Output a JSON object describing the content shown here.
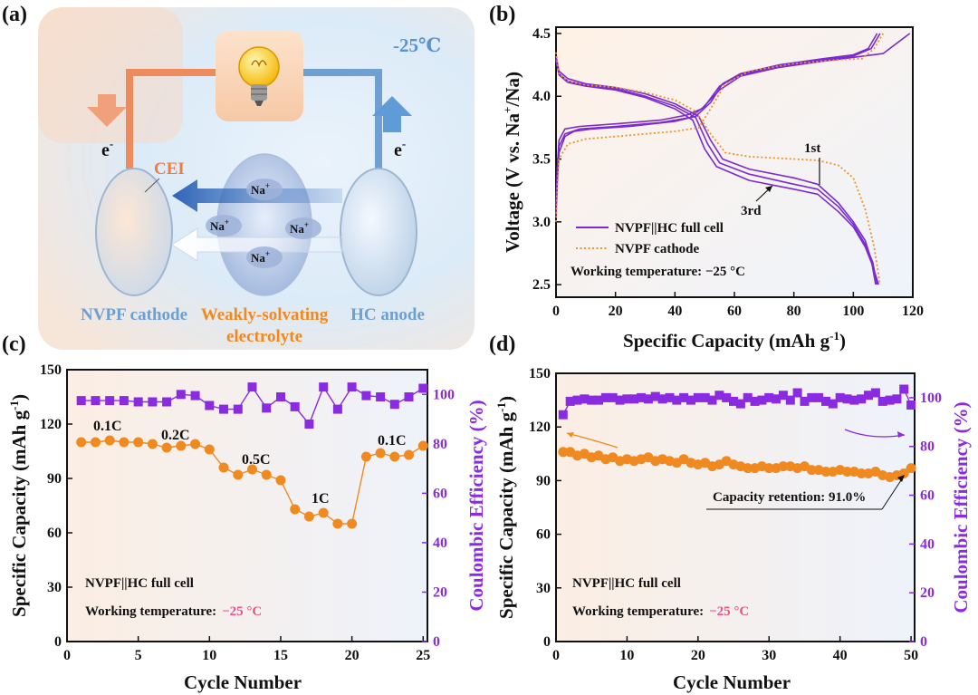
{
  "panel_labels": [
    "(a)",
    "(b)",
    "(c)",
    "(d)"
  ],
  "schematic": {
    "temperature": "-25℃",
    "electron": "e",
    "electron_sup": "-",
    "cei": "CEI",
    "na_ion": "Na",
    "na_sup": "+",
    "cathode_label": "NVPF cathode",
    "electrolyte_label_1": "Weakly-solvating",
    "electrolyte_label_2": "electrolyte",
    "anode_label": "HC anode",
    "colors": {
      "cathode": "#e8804a",
      "anode": "#5a90c8",
      "electrolyte": "#f08a20"
    }
  },
  "chart_data": [
    {
      "id": "b",
      "type": "line",
      "xlabel": "Specific Capacity (mAh g-1)",
      "ylabel": "Voltage (V vs. Na+/Na)",
      "xlim": [
        0,
        120
      ],
      "ylim": [
        2.4,
        4.55
      ],
      "xticks": [
        0,
        20,
        40,
        60,
        80,
        100,
        120
      ],
      "yticks": [
        2.5,
        3.0,
        3.5,
        4.0,
        4.5
      ],
      "legend": [
        "NVPF||HC full cell",
        "NVPF cathode"
      ],
      "annotations": [
        "1st",
        "3rd"
      ],
      "note": "Working temperature: −25 °C",
      "series": [
        {
          "name": "NVPF||HC full cell charge 1st",
          "style": "solid",
          "color": "#7a2ad0",
          "points": [
            [
              0,
              3.05
            ],
            [
              0.5,
              3.35
            ],
            [
              1,
              3.55
            ],
            [
              3,
              3.68
            ],
            [
              6,
              3.72
            ],
            [
              12,
              3.74
            ],
            [
              25,
              3.76
            ],
            [
              40,
              3.8
            ],
            [
              47,
              3.84
            ],
            [
              52,
              3.95
            ],
            [
              56,
              4.1
            ],
            [
              62,
              4.18
            ],
            [
              75,
              4.25
            ],
            [
              90,
              4.3
            ],
            [
              100,
              4.33
            ],
            [
              105,
              4.38
            ],
            [
              108,
              4.5
            ]
          ]
        },
        {
          "name": "NVPF||HC full cell charge 2nd",
          "style": "solid",
          "color": "#7a2ad0",
          "points": [
            [
              0,
              3.1
            ],
            [
              0.5,
              3.4
            ],
            [
              1,
              3.6
            ],
            [
              3,
              3.7
            ],
            [
              8,
              3.74
            ],
            [
              20,
              3.76
            ],
            [
              35,
              3.79
            ],
            [
              45,
              3.83
            ],
            [
              50,
              3.92
            ],
            [
              55,
              4.08
            ],
            [
              62,
              4.17
            ],
            [
              75,
              4.24
            ],
            [
              90,
              4.29
            ],
            [
              100,
              4.32
            ],
            [
              106,
              4.38
            ],
            [
              109,
              4.5
            ]
          ]
        },
        {
          "name": "NVPF||HC full cell charge 3rd",
          "style": "solid",
          "color": "#7a2ad0",
          "points": [
            [
              0,
              3.15
            ],
            [
              0.5,
              3.45
            ],
            [
              1,
              3.65
            ],
            [
              3,
              3.74
            ],
            [
              8,
              3.76
            ],
            [
              20,
              3.78
            ],
            [
              35,
              3.81
            ],
            [
              44,
              3.85
            ],
            [
              49,
              3.9
            ],
            [
              55,
              4.05
            ],
            [
              62,
              4.16
            ],
            [
              75,
              4.23
            ],
            [
              90,
              4.28
            ],
            [
              100,
              4.31
            ],
            [
              110,
              4.34
            ],
            [
              119,
              4.5
            ]
          ]
        },
        {
          "name": "NVPF||HC full cell discharge 1st",
          "style": "solid",
          "color": "#7a2ad0",
          "points": [
            [
              0,
              4.32
            ],
            [
              1,
              4.2
            ],
            [
              4,
              4.14
            ],
            [
              10,
              4.1
            ],
            [
              20,
              4.07
            ],
            [
              30,
              4.02
            ],
            [
              40,
              3.94
            ],
            [
              48,
              3.84
            ],
            [
              52,
              3.65
            ],
            [
              56,
              3.5
            ],
            [
              65,
              3.42
            ],
            [
              80,
              3.35
            ],
            [
              88,
              3.3
            ],
            [
              95,
              3.15
            ],
            [
              100,
              3.0
            ],
            [
              104,
              2.85
            ],
            [
              106,
              2.7
            ],
            [
              107.5,
              2.5
            ]
          ]
        },
        {
          "name": "NVPF||HC full cell discharge 2nd",
          "style": "solid",
          "color": "#7a2ad0",
          "points": [
            [
              0,
              4.3
            ],
            [
              1,
              4.18
            ],
            [
              4,
              4.12
            ],
            [
              10,
              4.09
            ],
            [
              20,
              4.06
            ],
            [
              30,
              4.0
            ],
            [
              40,
              3.92
            ],
            [
              47,
              3.83
            ],
            [
              51,
              3.62
            ],
            [
              55,
              3.47
            ],
            [
              65,
              3.38
            ],
            [
              80,
              3.3
            ],
            [
              88,
              3.26
            ],
            [
              95,
              3.12
            ],
            [
              100,
              2.98
            ],
            [
              104,
              2.82
            ],
            [
              106.5,
              2.68
            ],
            [
              108,
              2.5
            ]
          ]
        },
        {
          "name": "NVPF||HC full cell discharge 3rd",
          "style": "solid",
          "color": "#7a2ad0",
          "points": [
            [
              0,
              4.29
            ],
            [
              1,
              4.17
            ],
            [
              4,
              4.11
            ],
            [
              10,
              4.08
            ],
            [
              20,
              4.05
            ],
            [
              30,
              3.99
            ],
            [
              40,
              3.9
            ],
            [
              46,
              3.81
            ],
            [
              50,
              3.58
            ],
            [
              54,
              3.44
            ],
            [
              65,
              3.33
            ],
            [
              80,
              3.26
            ],
            [
              88,
              3.22
            ],
            [
              95,
              3.08
            ],
            [
              100,
              2.96
            ],
            [
              104,
              2.8
            ],
            [
              106.5,
              2.65
            ],
            [
              108.5,
              2.5
            ]
          ]
        },
        {
          "name": "NVPF cathode charge",
          "style": "dotted",
          "color": "#f0922a",
          "points": [
            [
              0,
              3.0
            ],
            [
              0.5,
              3.3
            ],
            [
              1,
              3.5
            ],
            [
              4,
              3.62
            ],
            [
              10,
              3.66
            ],
            [
              20,
              3.68
            ],
            [
              30,
              3.7
            ],
            [
              40,
              3.72
            ],
            [
              48,
              3.75
            ],
            [
              52,
              3.9
            ],
            [
              57,
              4.1
            ],
            [
              65,
              4.2
            ],
            [
              80,
              4.26
            ],
            [
              95,
              4.29
            ],
            [
              103,
              4.3
            ],
            [
              107,
              4.38
            ],
            [
              110,
              4.5
            ]
          ]
        },
        {
          "name": "NVPF cathode discharge",
          "style": "dotted",
          "color": "#f0922a",
          "points": [
            [
              0,
              4.35
            ],
            [
              1,
              4.18
            ],
            [
              4,
              4.12
            ],
            [
              10,
              4.09
            ],
            [
              20,
              4.07
            ],
            [
              30,
              4.03
            ],
            [
              40,
              3.97
            ],
            [
              47,
              3.88
            ],
            [
              52,
              3.7
            ],
            [
              57,
              3.55
            ],
            [
              65,
              3.52
            ],
            [
              80,
              3.5
            ],
            [
              88,
              3.49
            ],
            [
              95,
              3.45
            ],
            [
              100,
              3.35
            ],
            [
              104,
              3.1
            ],
            [
              107,
              2.8
            ],
            [
              109,
              2.5
            ]
          ]
        }
      ]
    },
    {
      "id": "c",
      "type": "scatter",
      "xlabel": "Cycle Number",
      "ylabel": "Specific Capacity (mAh g-1)",
      "y2label": "Coulombic Efficiency (%)",
      "xlim": [
        0,
        25.3
      ],
      "ylim": [
        0,
        150
      ],
      "y2lim": [
        0,
        110
      ],
      "xticks": [
        0,
        5,
        10,
        15,
        20,
        25
      ],
      "yticks": [
        0,
        30,
        60,
        90,
        120,
        150
      ],
      "y2ticks": [
        0,
        20,
        40,
        60,
        80,
        100
      ],
      "rate_labels": [
        "0.1C",
        "0.2C",
        "0.5C",
        "1C",
        "0.1C"
      ],
      "note_cell": "NVPF||HC full cell",
      "note_temp_prefix": "Working temperature:",
      "note_temp_value": "−25 °C",
      "series": [
        {
          "name": "Specific Capacity",
          "axis": "left",
          "color": "#f08a20",
          "x": [
            1,
            2,
            3,
            4,
            5,
            6,
            7,
            8,
            9,
            10,
            11,
            12,
            13,
            14,
            15,
            16,
            17,
            18,
            19,
            20,
            21,
            22,
            23,
            24,
            25
          ],
          "values": [
            110,
            110,
            111,
            110,
            110,
            109,
            107,
            108,
            109,
            106,
            96,
            92,
            95,
            92,
            89,
            73,
            69,
            71,
            65,
            65,
            102,
            104,
            102,
            103,
            108
          ]
        },
        {
          "name": "Coulombic Efficiency",
          "axis": "right",
          "color": "#8a2be2",
          "x": [
            1,
            2,
            3,
            4,
            5,
            6,
            7,
            8,
            9,
            10,
            11,
            12,
            13,
            14,
            15,
            16,
            17,
            18,
            19,
            20,
            21,
            22,
            23,
            24,
            25
          ],
          "values": [
            97.5,
            97.5,
            97.5,
            97.5,
            97,
            97,
            97,
            100,
            99.5,
            95.5,
            94,
            94,
            103,
            94.5,
            99,
            95,
            88,
            103,
            94,
            103,
            99.5,
            99,
            96,
            99,
            102.5
          ]
        }
      ]
    },
    {
      "id": "d",
      "type": "scatter",
      "xlabel": "Cycle Number",
      "ylabel": "Specific Capacity (mAh g-1)",
      "y2label": "Coulombic Efficiency (%)",
      "xlim": [
        0,
        50.5
      ],
      "ylim": [
        0,
        150
      ],
      "y2lim": [
        0,
        110
      ],
      "xticks": [
        0,
        10,
        20,
        30,
        40,
        50
      ],
      "yticks": [
        0,
        30,
        60,
        90,
        120,
        150
      ],
      "y2ticks": [
        0,
        20,
        40,
        60,
        80,
        100
      ],
      "note_retention": "Capacity retention: 91.0%",
      "note_cell": "NVPF||HC full cell",
      "note_temp_prefix": "Working temperature:",
      "note_temp_value": "−25 °C",
      "series": [
        {
          "name": "Specific Capacity",
          "axis": "left",
          "color": "#f08a20",
          "x": [
            1,
            2,
            3,
            4,
            5,
            6,
            7,
            8,
            9,
            10,
            11,
            12,
            13,
            14,
            15,
            16,
            17,
            18,
            19,
            20,
            21,
            22,
            23,
            24,
            25,
            26,
            27,
            28,
            29,
            30,
            31,
            32,
            33,
            34,
            35,
            36,
            37,
            38,
            39,
            40,
            41,
            42,
            43,
            44,
            45,
            46,
            47,
            48,
            49,
            50
          ],
          "values": [
            106,
            106,
            104,
            105,
            103,
            104,
            102,
            103,
            101,
            102,
            101,
            102,
            103,
            101,
            102,
            101,
            100,
            102,
            100,
            99,
            100,
            98,
            99,
            101,
            99,
            98,
            97,
            97,
            98,
            97,
            97,
            98,
            98,
            97,
            98,
            96,
            96,
            95,
            95,
            96,
            95,
            95,
            94,
            94,
            95,
            93,
            92,
            93,
            94,
            97
          ]
        },
        {
          "name": "Coulombic Efficiency",
          "axis": "right",
          "color": "#8a2be2",
          "x": [
            1,
            2,
            3,
            4,
            5,
            6,
            7,
            8,
            9,
            10,
            11,
            12,
            13,
            14,
            15,
            16,
            17,
            18,
            19,
            20,
            21,
            22,
            23,
            24,
            25,
            26,
            27,
            28,
            29,
            30,
            31,
            32,
            33,
            34,
            35,
            36,
            37,
            38,
            39,
            40,
            41,
            42,
            43,
            44,
            45,
            46,
            47,
            48,
            49,
            50
          ],
          "values": [
            93,
            98.5,
            99,
            99.5,
            99,
            99,
            100,
            100,
            99,
            99.5,
            99.5,
            100,
            99.5,
            100.5,
            99.5,
            100,
            99,
            100,
            99,
            100,
            100,
            99,
            101,
            100,
            98.5,
            97.5,
            100,
            98.5,
            99,
            100,
            99.5,
            101,
            99,
            102,
            98.5,
            100,
            100,
            98.5,
            97.5,
            100,
            99.5,
            99,
            99.5,
            101,
            102,
            98.5,
            99,
            99.5,
            103.5,
            97
          ]
        }
      ]
    }
  ]
}
